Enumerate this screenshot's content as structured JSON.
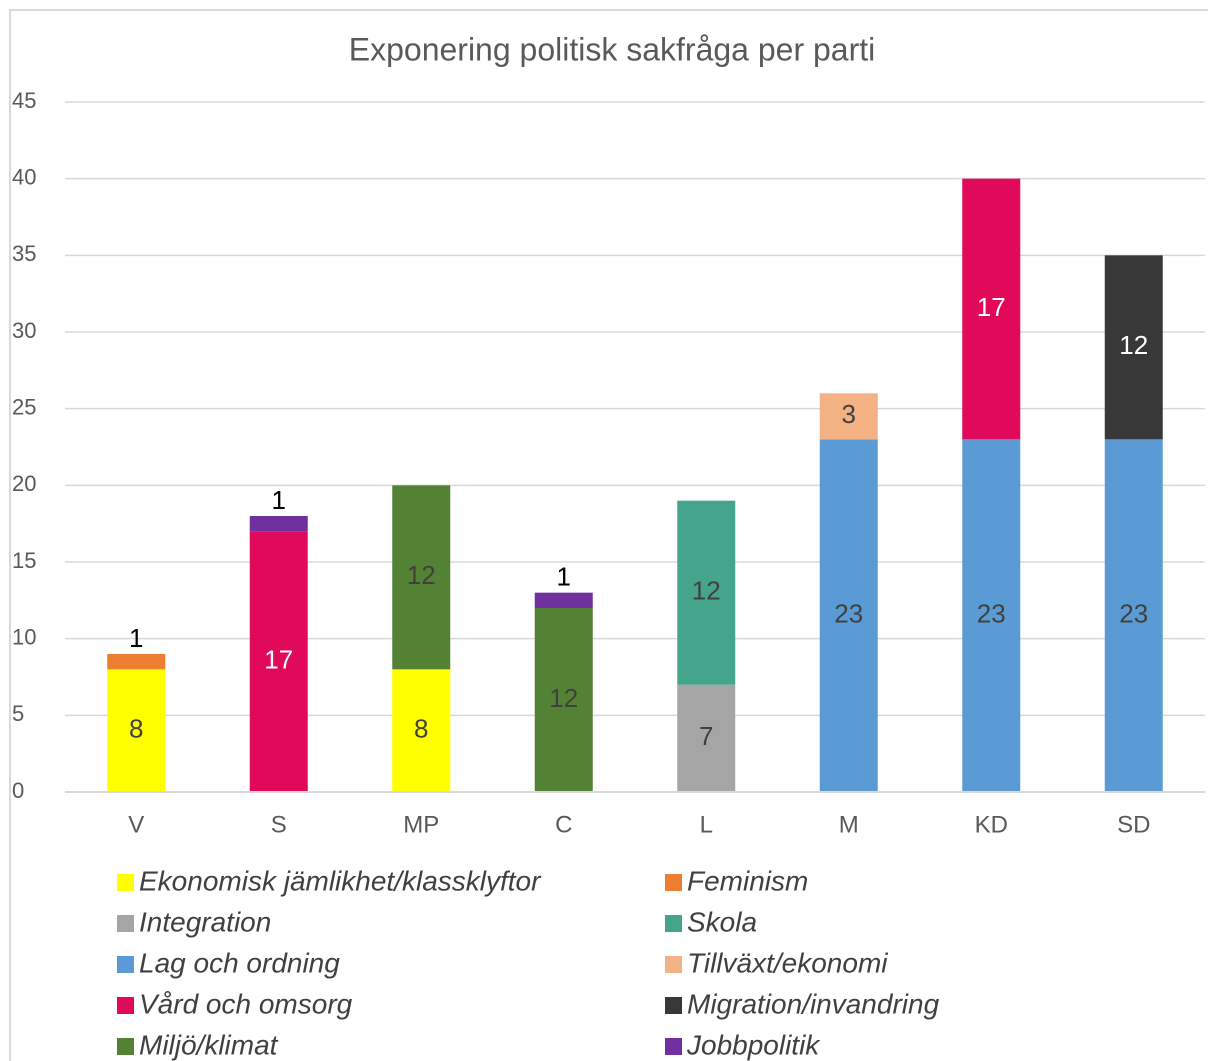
{
  "chart_data": {
    "type": "stacked_bar",
    "title": "Exponering politisk sakfråga per parti",
    "categories": [
      "V",
      "S",
      "MP",
      "C",
      "L",
      "M",
      "KD",
      "SD"
    ],
    "ylim": [
      0,
      45
    ],
    "yticks": [
      0,
      5,
      10,
      15,
      20,
      25,
      30,
      35,
      40,
      45
    ],
    "grid": true,
    "legend": "bottom",
    "series": [
      {
        "name": "Ekonomisk jämlikhet/klassklyftor",
        "color": "#ffff00",
        "values": [
          8,
          null,
          8,
          null,
          null,
          null,
          null,
          null
        ]
      },
      {
        "name": "Feminism",
        "color": "#ed7d31",
        "values": [
          1,
          null,
          null,
          null,
          null,
          null,
          null,
          null
        ]
      },
      {
        "name": "Integration",
        "color": "#a5a5a5",
        "values": [
          null,
          null,
          null,
          null,
          7,
          null,
          null,
          null
        ]
      },
      {
        "name": "Skola",
        "color": "#44a58c",
        "values": [
          null,
          null,
          null,
          null,
          12,
          null,
          null,
          null
        ]
      },
      {
        "name": "Lag och ordning",
        "color": "#5b9bd5",
        "values": [
          null,
          null,
          null,
          null,
          null,
          23,
          23,
          23
        ]
      },
      {
        "name": "Tillväxt/ekonomi",
        "color": "#f4b183",
        "values": [
          null,
          null,
          null,
          null,
          null,
          3,
          null,
          null
        ]
      },
      {
        "name": "Vård och omsorg",
        "color": "#e0095a",
        "values": [
          null,
          17,
          null,
          null,
          null,
          null,
          17,
          null
        ]
      },
      {
        "name": "Migration/invandring",
        "color": "#383838",
        "values": [
          null,
          null,
          null,
          null,
          null,
          null,
          null,
          12
        ]
      },
      {
        "name": "Miljö/klimat",
        "color": "#548235",
        "values": [
          null,
          null,
          12,
          12,
          null,
          null,
          null,
          null
        ]
      },
      {
        "name": "Jobbpolitik",
        "color": "#7030a0",
        "values": [
          null,
          1,
          null,
          1,
          null,
          null,
          null,
          null
        ]
      }
    ]
  }
}
